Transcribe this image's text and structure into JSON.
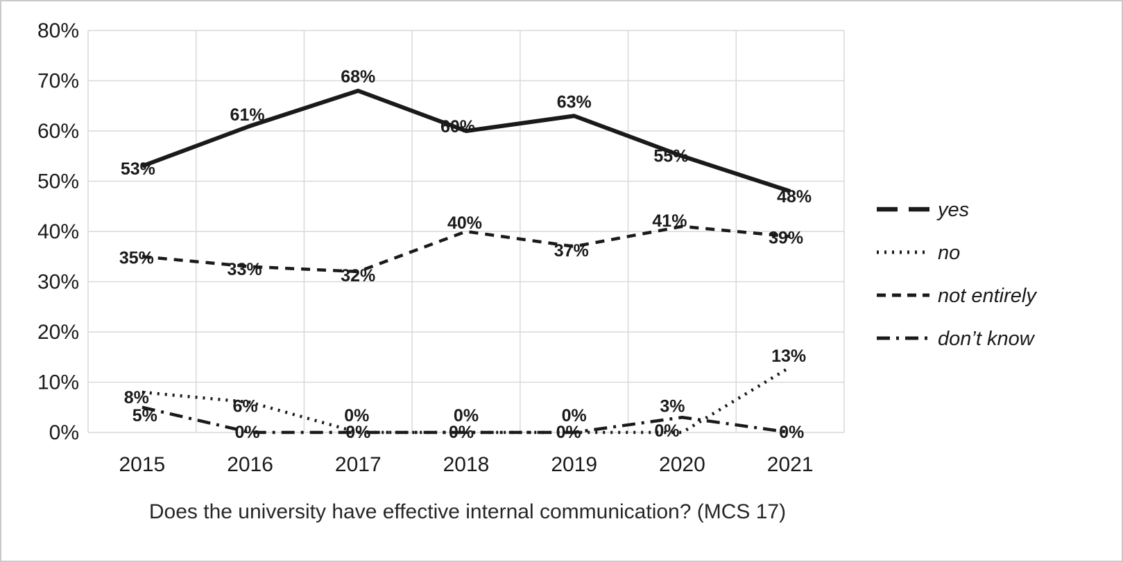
{
  "chart_data": {
    "type": "line",
    "title": "Does the university have effective internal communication? (MCS 17)",
    "categories": [
      "2015",
      "2016",
      "2017",
      "2018",
      "2019",
      "2020",
      "2021"
    ],
    "series": [
      {
        "name": "yes",
        "style": "solid",
        "values": [
          53,
          61,
          68,
          60,
          63,
          55,
          48
        ]
      },
      {
        "name": "no",
        "style": "dotted",
        "values": [
          8,
          6,
          0,
          0,
          0,
          0,
          13
        ]
      },
      {
        "name": "not entirely",
        "style": "dashed",
        "values": [
          35,
          33,
          32,
          40,
          37,
          41,
          39
        ]
      },
      {
        "name": "don’t know",
        "style": "dashdot",
        "values": [
          5,
          0,
          0,
          0,
          0,
          3,
          0
        ]
      }
    ],
    "ylim": [
      0,
      80
    ],
    "y_ticks": [
      "0%",
      "10%",
      "20%",
      "30%",
      "40%",
      "50%",
      "60%",
      "70%",
      "80%"
    ],
    "grid": true,
    "legend_position": "right",
    "label_format": "percent",
    "colors": {
      "line": "#1a1a1a",
      "grid": "#d9d9d9",
      "text": "#1a1a1a"
    }
  }
}
